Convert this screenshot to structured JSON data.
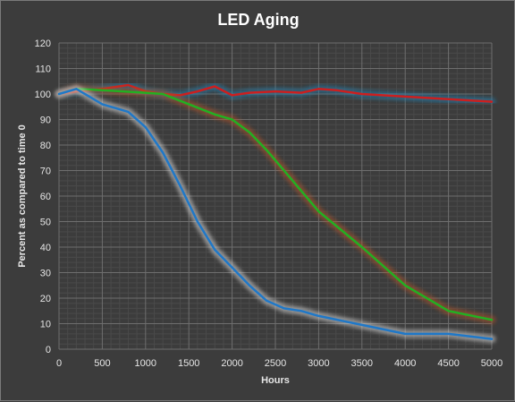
{
  "chart_data": {
    "type": "line",
    "title": "LED Aging",
    "xlabel": "Hours",
    "ylabel": "Percent as compared  to time 0",
    "xlim": [
      0,
      5000
    ],
    "ylim": [
      0,
      120
    ],
    "xticks": [
      0,
      500,
      1000,
      1500,
      2000,
      2500,
      3000,
      3500,
      4000,
      4500,
      5000
    ],
    "yticks": [
      0,
      10,
      20,
      30,
      40,
      50,
      60,
      70,
      80,
      90,
      100,
      110,
      120
    ],
    "grid": true,
    "legend": "none",
    "series": [
      {
        "color": "#cc1f1f",
        "glow": "#1e7fb0",
        "x": [
          0,
          200,
          500,
          800,
          1000,
          1200,
          1400,
          1600,
          1800,
          2000,
          2200,
          2500,
          2800,
          3000,
          3200,
          3500,
          4000,
          4500,
          5000
        ],
        "y": [
          100,
          101,
          102,
          103.5,
          101,
          100,
          99.5,
          101,
          103,
          99.5,
          100.5,
          101,
          100.5,
          102,
          101.5,
          100,
          99,
          98,
          97
        ]
      },
      {
        "color": "#22b022",
        "glow": "#b0522a",
        "x": [
          0,
          200,
          500,
          1000,
          1200,
          1500,
          1800,
          2000,
          2200,
          2400,
          2600,
          2800,
          3000,
          3500,
          4000,
          4500,
          5000
        ],
        "y": [
          100,
          102,
          101.5,
          100.5,
          100,
          96,
          92,
          90,
          85,
          78,
          70,
          62,
          54,
          40,
          25,
          15,
          11.5
        ]
      },
      {
        "color": "#1f78c8",
        "glow": "#d8d8d8",
        "x": [
          0,
          200,
          500,
          800,
          1000,
          1200,
          1400,
          1600,
          1800,
          2000,
          2200,
          2400,
          2600,
          2800,
          3000,
          3500,
          4000,
          4500,
          5000
        ],
        "y": [
          100,
          102,
          96,
          93,
          87,
          77,
          64,
          50,
          39,
          32,
          25,
          19,
          16,
          15,
          13,
          9.5,
          6,
          6,
          4
        ]
      }
    ]
  }
}
